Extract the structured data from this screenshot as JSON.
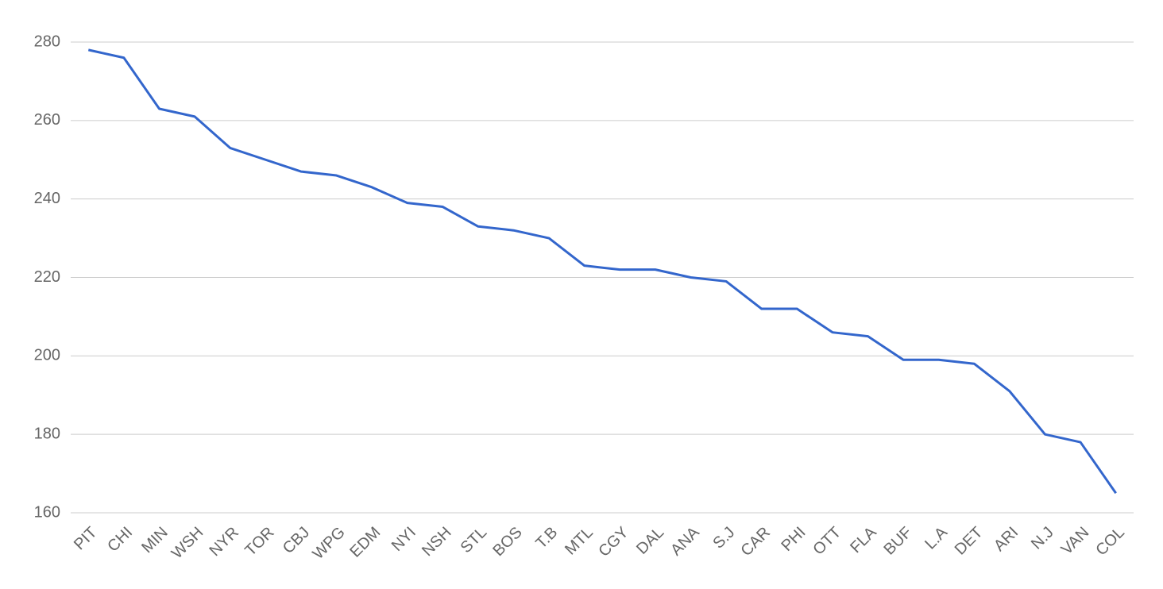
{
  "chart_data": {
    "type": "line",
    "categories": [
      "PIT",
      "CHI",
      "MIN",
      "WSH",
      "NYR",
      "TOR",
      "CBJ",
      "WPG",
      "EDM",
      "NYI",
      "NSH",
      "STL",
      "BOS",
      "T.B",
      "MTL",
      "CGY",
      "DAL",
      "ANA",
      "S.J",
      "CAR",
      "PHI",
      "OTT",
      "FLA",
      "BUF",
      "L.A",
      "DET",
      "ARI",
      "N.J",
      "VAN",
      "COL"
    ],
    "series": [
      {
        "color": "#3366cc",
        "values": [
          278,
          276,
          263,
          261,
          253,
          250,
          247,
          246,
          243,
          239,
          238,
          233,
          232,
          230,
          223,
          222,
          222,
          220,
          219,
          212,
          212,
          206,
          205,
          199,
          199,
          198,
          191,
          180,
          178,
          165
        ]
      }
    ],
    "ylim": [
      160,
      280
    ],
    "yticks": [
      160,
      180,
      200,
      220,
      240,
      260,
      280
    ],
    "grid": true
  }
}
